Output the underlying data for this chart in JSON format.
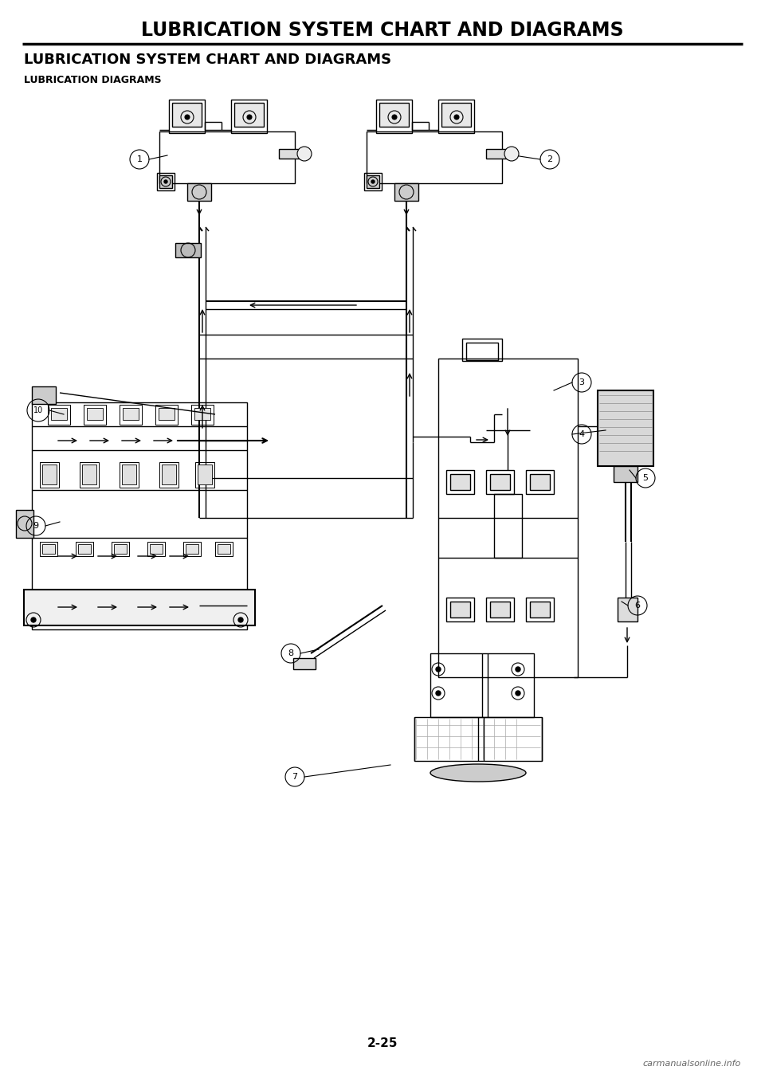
{
  "page_title": "LUBRICATION SYSTEM CHART AND DIAGRAMS",
  "section_title": "LUBRICATION SYSTEM CHART AND DIAGRAMS",
  "subsection_title": "LUBRICATION DIAGRAMS",
  "page_number": "2-25",
  "watermark": "carmanualsonline.info",
  "bg_color": "#ffffff",
  "title_color": "#000000",
  "title_fontsize": 17,
  "section_fontsize": 13,
  "subsection_fontsize": 9,
  "page_number_fontsize": 11,
  "watermark_fontsize": 8
}
